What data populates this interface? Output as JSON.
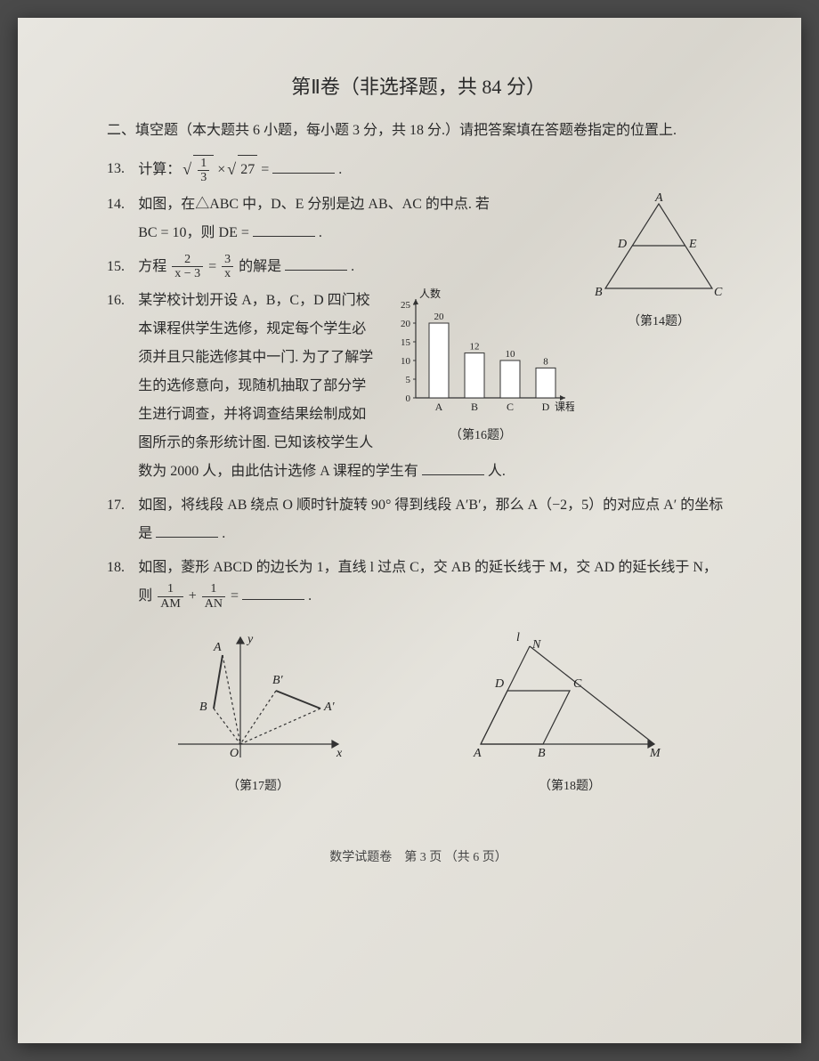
{
  "title": "第Ⅱ卷（非选择题，共 84 分）",
  "section": "二、填空题（本大题共 6 小题，每小题 3 分，共 18 分.）请把答案填在答题卷指定的位置上.",
  "q13": {
    "num": "13.",
    "pre": "计算：",
    "sqrt_frac_num": "1",
    "sqrt_frac_den": "3",
    "mid": "×",
    "sqrt2_arg": "27",
    "post": " = ",
    "end": "."
  },
  "q14": {
    "num": "14.",
    "line1": "如图，在△ABC 中，D、E 分别是边 AB、AC 的中点. 若",
    "line2a": "BC = 10，则 DE = ",
    "line2b": ".",
    "caption": "（第14题）",
    "labels": {
      "A": "A",
      "B": "B",
      "C": "C",
      "D": "D",
      "E": "E"
    }
  },
  "q15": {
    "num": "15.",
    "pre": "方程 ",
    "f1n": "2",
    "f1d": "x − 3",
    "eq": " = ",
    "f2n": "3",
    "f2d": "x",
    "post": " 的解是",
    "end": "."
  },
  "q16": {
    "num": "16.",
    "body": "某学校计划开设 A，B，C，D 四门校本课程供学生选修，规定每个学生必须并且只能选修其中一门. 为了了解学生的选修意向，现随机抽取了部分学生进行调查，并将调查结果绘制成如图所示的条形统计图. 已知该校学生人数为 2000 人，由此估计选修 A 课程的学生有",
    "post": "人.",
    "caption": "（第16题）",
    "chart": {
      "ylabel": "人数",
      "xlabel": "课程",
      "categories": [
        "A",
        "B",
        "C",
        "D"
      ],
      "values": [
        20,
        12,
        10,
        8
      ],
      "value_labels": [
        "20",
        "12",
        "10",
        "8"
      ],
      "ylim": [
        0,
        25
      ],
      "yticks": [
        0,
        5,
        10,
        15,
        20,
        25
      ],
      "bar_color": "#ffffff",
      "bar_stroke": "#333333",
      "axis_color": "#333333"
    }
  },
  "q17": {
    "num": "17.",
    "body1": "如图，将线段 AB 绕点 O 顺时针旋转 90° 得到线段 A′B′，那么 A（−2，5）的对应点 A′ 的坐标是",
    "end": ".",
    "caption": "（第17题）",
    "labels": {
      "A": "A",
      "B": "B",
      "Ap": "A′",
      "Bp": "B′",
      "O": "O",
      "x": "x",
      "y": "y"
    }
  },
  "q18": {
    "num": "18.",
    "body1": "如图，菱形 ABCD 的边长为 1，直线 l 过点 C，交 AB 的延长线于 M，交 AD 的延长线于 N，则 ",
    "f1n": "1",
    "f1d": "AM",
    "plus": " + ",
    "f2n": "1",
    "f2d": "AN",
    "eq": " = ",
    "end": ".",
    "caption": "（第18题）",
    "labels": {
      "A": "A",
      "B": "B",
      "C": "C",
      "D": "D",
      "M": "M",
      "N": "N",
      "l": "l"
    }
  },
  "footer": "数学试题卷　第 3 页 （共 6 页）"
}
